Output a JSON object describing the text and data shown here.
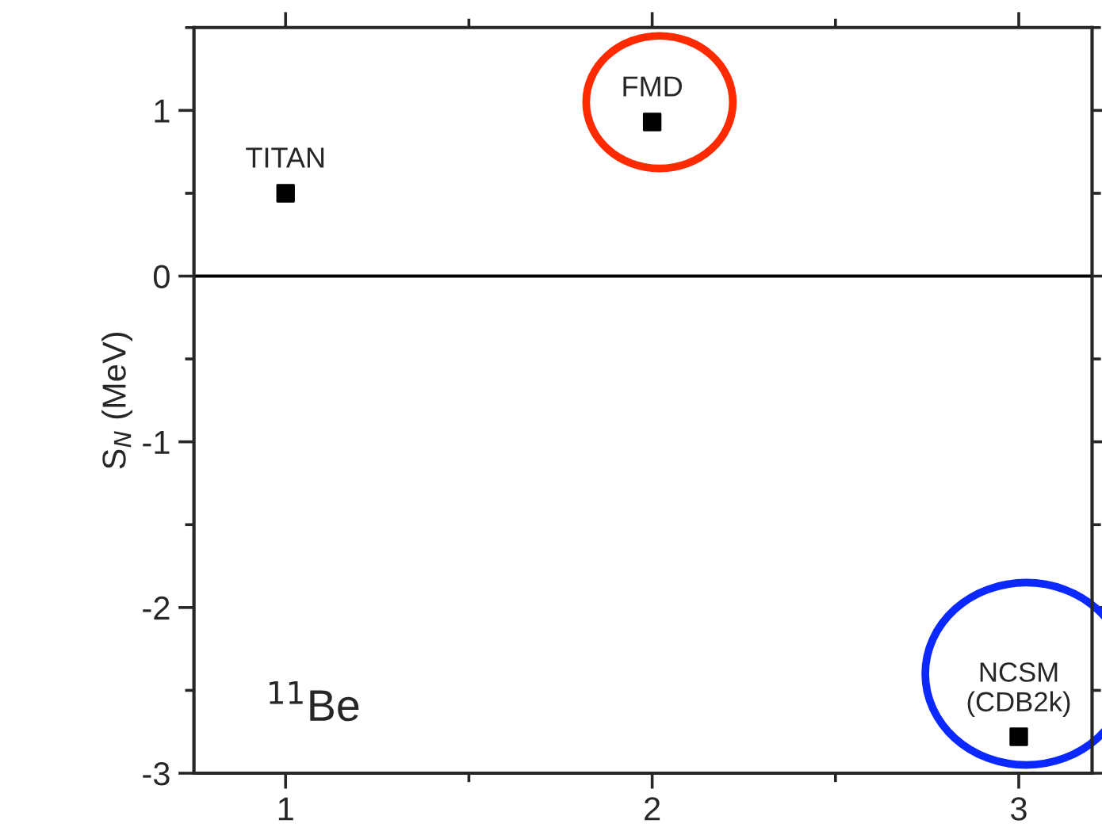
{
  "chart_data": {
    "type": "scatter",
    "ylabel": "S$_{N}$ (MeV)",
    "x": [
      1,
      2,
      3
    ],
    "series": [
      {
        "color": "#000000",
        "values": [
          0.5,
          0.93,
          -2.78
        ]
      }
    ],
    "marker": "square",
    "xlim": [
      0.75,
      3.2
    ],
    "xticks": [
      1,
      2,
      3
    ],
    "ylim": [
      -3,
      1.5
    ],
    "yticks": [
      -3,
      -2,
      -1,
      0,
      1
    ],
    "ref_lines": [
      {
        "axis": "y",
        "value": 0,
        "color": "#000000",
        "line_style": "solid"
      }
    ],
    "annotations": [
      {
        "text": "TITAN",
        "x": 1,
        "y": 0.5
      },
      {
        "text": "FMD",
        "x": 2,
        "y": 0.93
      },
      {
        "text": "NCSM\n(CDB2k)",
        "x": 3,
        "y": -2.78
      },
      "$^{11}$Be"
    ],
    "grid": false,
    "legend": false
  }
}
